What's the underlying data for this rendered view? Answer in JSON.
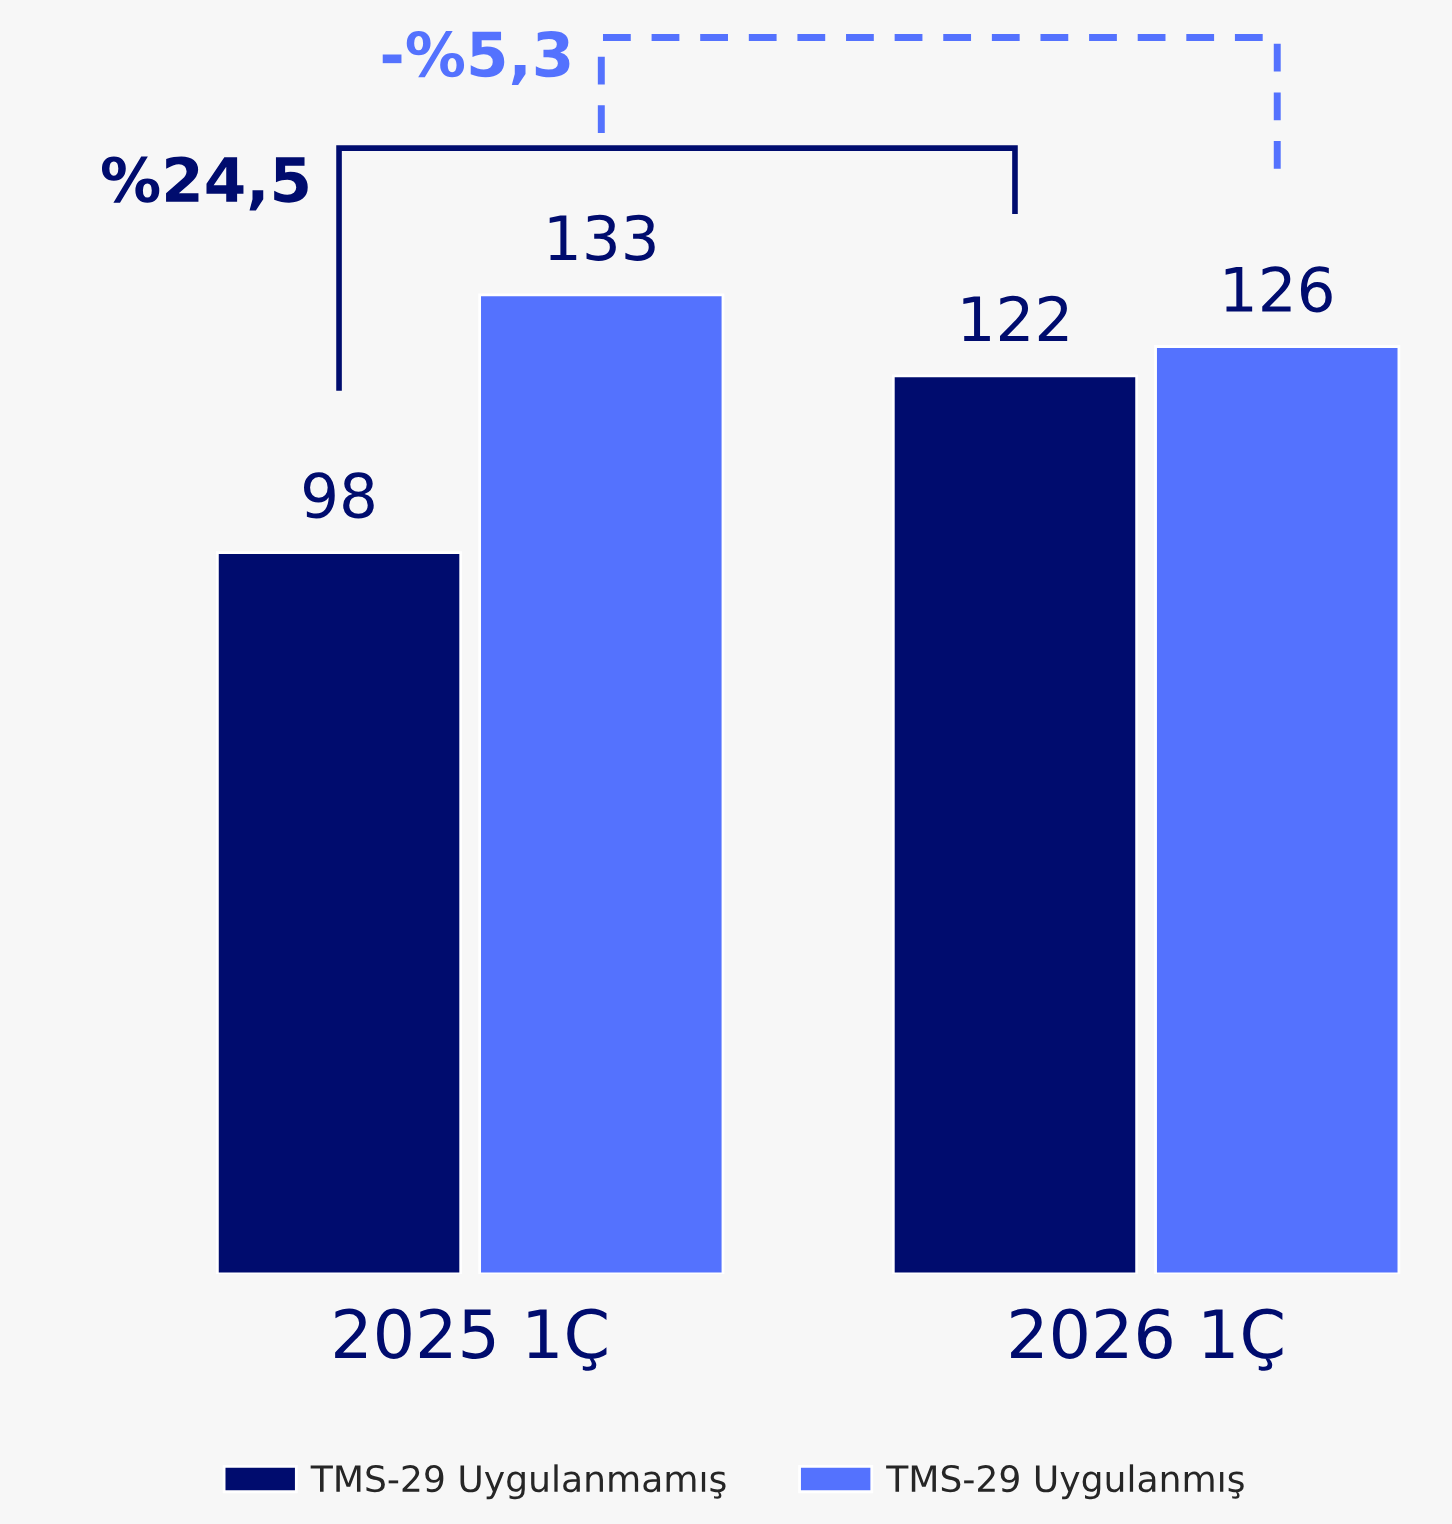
{
  "chart_data": {
    "type": "bar",
    "categories": [
      "2025 1Ç",
      "2026 1Ç"
    ],
    "series": [
      {
        "name": "TMS-29 Uygulanmamış",
        "color": "#000c6e",
        "values": [
          98,
          122
        ]
      },
      {
        "name": "TMS-29 Uygulanmış",
        "color": "#5472fe",
        "values": [
          133,
          126
        ]
      }
    ],
    "tick_labels": "x",
    "data_labels": true,
    "grid": false,
    "legend": "bottom",
    "annotations": [
      "%24,5",
      "-%5,3"
    ]
  }
}
